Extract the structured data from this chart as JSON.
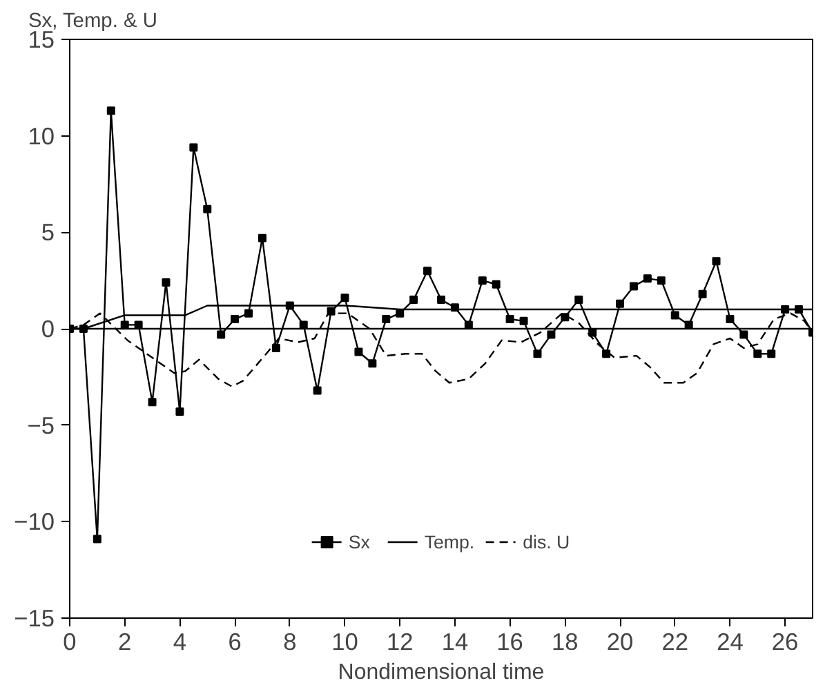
{
  "chart_data": {
    "type": "line",
    "xlabel": "Nondimensional time",
    "ylabel": "Sx, Temp. & U",
    "xlim": [
      0,
      27
    ],
    "ylim": [
      -15,
      15
    ],
    "xticks": [
      0,
      2,
      4,
      6,
      8,
      10,
      12,
      14,
      16,
      18,
      20,
      22,
      24,
      26
    ],
    "yticks": [
      -15,
      -10,
      -5,
      0,
      5,
      10,
      15
    ],
    "grid": false,
    "legend": "bottom",
    "ref_lines": [
      {
        "axis": "y",
        "value": 0,
        "color": "#000000"
      }
    ],
    "series": [
      {
        "name": "Sx",
        "color": "#000000",
        "marker": "square",
        "line_style": "solid",
        "x": [
          0,
          0.5,
          1,
          1.5,
          2,
          2.5,
          3,
          3.5,
          4,
          4.5,
          5,
          5.5,
          6,
          6.5,
          7,
          7.5,
          8,
          8.5,
          9,
          9.5,
          10,
          10.5,
          11,
          11.5,
          12,
          12.5,
          13,
          13.5,
          14,
          14.5,
          15,
          15.5,
          16,
          16.5,
          17,
          17.5,
          18,
          18.5,
          19,
          19.5,
          20,
          20.5,
          21,
          21.5,
          22,
          22.5,
          23,
          23.5,
          24,
          24.5,
          25,
          25.5,
          26,
          26.5,
          27
        ],
        "values": [
          0,
          0,
          -10.9,
          11.3,
          0.2,
          0.2,
          -3.8,
          2.4,
          -4.3,
          9.4,
          6.2,
          -0.3,
          0.5,
          0.8,
          4.7,
          -1.0,
          1.2,
          0.2,
          -3.2,
          0.9,
          1.6,
          -1.2,
          -1.8,
          0.5,
          0.8,
          1.5,
          3.0,
          1.5,
          1.1,
          0.2,
          2.5,
          2.3,
          0.5,
          0.4,
          -1.3,
          -0.3,
          0.6,
          1.5,
          -0.2,
          -1.3,
          1.3,
          2.2,
          2.6,
          2.5,
          0.7,
          0.2,
          1.8,
          3.5,
          0.5,
          -0.3,
          -1.3,
          -1.3,
          1.0,
          1.0,
          -0.2
        ]
      },
      {
        "name": "Temp.",
        "color": "#000000",
        "marker": "none",
        "line_style": "solid",
        "x": [
          0,
          0.5,
          2,
          4.2,
          5,
          10,
          12,
          27
        ],
        "values": [
          0,
          0,
          0.7,
          0.7,
          1.2,
          1.2,
          1.0,
          1.0
        ]
      },
      {
        "name": "dis. U",
        "color": "#000000",
        "marker": "none",
        "line_style": "dashed",
        "x": [
          0,
          0.5,
          1.1,
          2.1,
          3.3,
          3.8,
          4.2,
          4.7,
          5.4,
          5.9,
          6.3,
          7.2,
          7.6,
          8.3,
          8.9,
          9.4,
          10.1,
          10.9,
          11.5,
          12.2,
          12.8,
          13.3,
          13.8,
          14.5,
          15.1,
          15.7,
          16.4,
          17.1,
          17.9,
          18.5,
          19.2,
          19.8,
          20.6,
          21.1,
          21.6,
          22.3,
          22.8,
          23.4,
          24,
          24.5,
          25,
          25.6,
          26.2,
          26.7,
          27
        ],
        "values": [
          0,
          0.2,
          0.8,
          -0.6,
          -1.8,
          -2.3,
          -2.2,
          -1.6,
          -2.6,
          -3.0,
          -2.7,
          -1.2,
          -0.5,
          -0.7,
          -0.5,
          0.8,
          0.8,
          0,
          -1.4,
          -1.3,
          -1.3,
          -2.2,
          -2.8,
          -2.6,
          -1.8,
          -0.6,
          -0.7,
          -0.2,
          0.8,
          0.3,
          -0.8,
          -1.5,
          -1.4,
          -2.0,
          -2.8,
          -2.8,
          -2.3,
          -0.8,
          -0.5,
          -1.0,
          -0.8,
          0.5,
          0.8,
          0.4,
          -0.2
        ]
      }
    ]
  }
}
